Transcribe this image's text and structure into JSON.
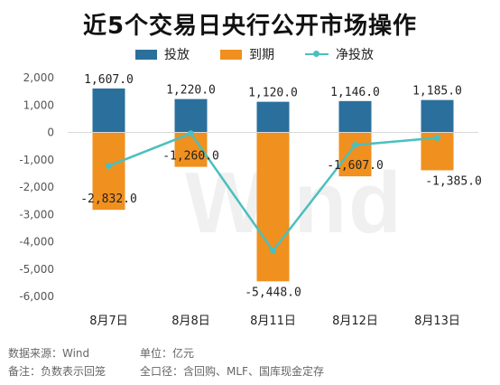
{
  "title": "近5个交易日央行公开市场操作",
  "legend": {
    "series1": "投放",
    "series2": "到期",
    "series3": "净投放"
  },
  "colors": {
    "series1": "#2b6f9c",
    "series2": "#f0901e",
    "series3": "#4bbfbf"
  },
  "watermark": "Wind",
  "footer": {
    "source": "数据来源：Wind",
    "unit": "单位：亿元",
    "note": "备注：负数表示回笼",
    "scope": "全口径：含回购、MLF、国库现金定存"
  },
  "chart_data": {
    "type": "bar",
    "categories": [
      "8月7日",
      "8月8日",
      "8月11日",
      "8月12日",
      "8月13日"
    ],
    "series": [
      {
        "name": "投放",
        "type": "bar",
        "values": [
          1607.0,
          1220.0,
          1120.0,
          1146.0,
          1185.0
        ],
        "labels": [
          "1,607.0",
          "1,220.0",
          "1,120.0",
          "1,146.0",
          "1,185.0"
        ]
      },
      {
        "name": "到期",
        "type": "bar",
        "values": [
          -2832.0,
          -1260.0,
          -5448.0,
          -1607.0,
          -1385.0
        ],
        "labels": [
          "-2,832.0",
          "-1,260.0",
          "-5,448.0",
          "-1,607.0",
          "-1,385.0"
        ]
      },
      {
        "name": "净投放",
        "type": "line",
        "values": [
          -1225.0,
          -40.0,
          -4328.0,
          -461.0,
          -200.0
        ]
      }
    ],
    "ylim": [
      -6000,
      2000
    ],
    "yticks": [
      "2,000",
      "1,000",
      "0",
      "-1,000",
      "-2,000",
      "-3,000",
      "-4,000",
      "-5,000",
      "-6,000"
    ],
    "ytick_values": [
      2000,
      1000,
      0,
      -1000,
      -2000,
      -3000,
      -4000,
      -5000,
      -6000
    ],
    "grid": false,
    "legend_position": "top"
  }
}
